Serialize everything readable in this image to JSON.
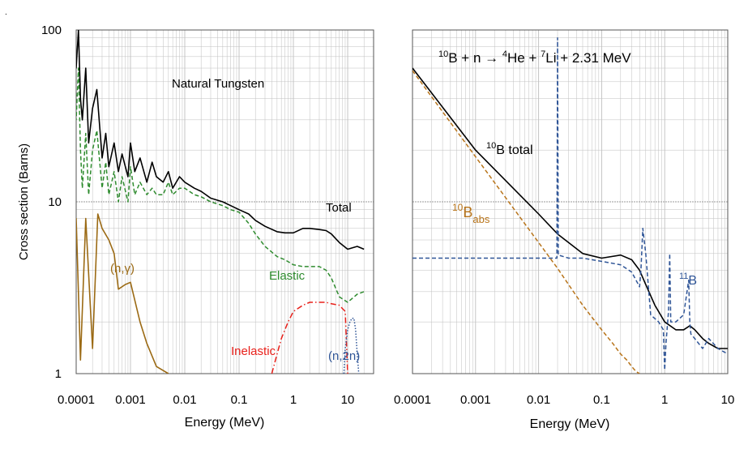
{
  "figure": {
    "ylabel": "Cross section (Barns)",
    "y_ticks": [
      "1",
      "10",
      "100"
    ],
    "x_ticks_left": [
      "0.0001",
      "0.001",
      "0.01",
      "0.1",
      "1",
      "10"
    ],
    "x_ticks_right": [
      "0.0001",
      "0.001",
      "0.01",
      "0.1",
      "1",
      "10"
    ],
    "xlabel_left": "Energy (MeV)",
    "xlabel_right": "Energy (MeV)",
    "left_title": "Natural Tungsten",
    "right_title": {
      "m1": "10",
      "t1": "B + n → ",
      "m2": "4",
      "t2": "He + ",
      "m3": "7",
      "t3": "Li + 2.31 MeV"
    },
    "labels_left": {
      "total": "Total",
      "elastic": "Elastic",
      "ngamma": "(n,γ)",
      "inelastic": "Inelastic",
      "n2n": "(n,2n)"
    },
    "labels_right": {
      "b10total_sup": "10",
      "b10total_text": "B total",
      "b10abs_sup": "10",
      "b10abs_base": "B",
      "b10abs_sub": "abs",
      "b11_sup": "11",
      "b11_base": "B"
    }
  },
  "colors": {
    "total": "#000000",
    "elastic": "#2e8b2e",
    "ngamma": "#9b6a14",
    "inelastic": "#e8201a",
    "n2n": "#2f5597",
    "b10abs": "#b8741a",
    "b11": "#2f5597",
    "grid": "#bfbfbf"
  },
  "chart_data": [
    {
      "type": "line",
      "title": "Natural Tungsten",
      "xlabel": "Energy (MeV)",
      "ylabel": "Cross section (Barns)",
      "xscale": "log",
      "yscale": "log",
      "xlim": [
        0.0001,
        30
      ],
      "ylim": [
        1,
        100
      ],
      "grid": true,
      "series": [
        {
          "name": "Total",
          "style": "solid",
          "x": [
            8e-05,
            0.0001,
            0.00011,
            0.00012,
            0.00013,
            0.00015,
            0.00017,
            0.0002,
            0.00024,
            0.0003,
            0.00035,
            0.0004,
            0.0005,
            0.0006,
            0.0007,
            0.0009,
            0.001,
            0.0012,
            0.0015,
            0.002,
            0.0025,
            0.003,
            0.004,
            0.005,
            0.006,
            0.008,
            0.01,
            0.015,
            0.02,
            0.03,
            0.05,
            0.07,
            0.1,
            0.15,
            0.2,
            0.3,
            0.5,
            0.7,
            1,
            1.5,
            2,
            3,
            4,
            5,
            7,
            10,
            15,
            20
          ],
          "y": [
            90,
            60,
            100,
            40,
            30,
            60,
            22,
            35,
            45,
            18,
            25,
            16,
            22,
            15,
            19,
            14,
            22,
            15,
            18,
            13,
            17,
            14,
            13,
            15,
            12,
            14,
            13,
            12,
            11.5,
            10.5,
            10,
            9.5,
            9,
            8.5,
            7.8,
            7.2,
            6.7,
            6.6,
            6.6,
            7,
            7,
            6.9,
            6.8,
            6.5,
            5.8,
            5.3,
            5.5,
            5.3
          ]
        },
        {
          "name": "Elastic",
          "style": "dash",
          "x": [
            8e-05,
            0.0001,
            0.00011,
            0.00012,
            0.00013,
            0.00015,
            0.00017,
            0.0002,
            0.00024,
            0.0003,
            0.00035,
            0.0004,
            0.0005,
            0.0006,
            0.0007,
            0.0009,
            0.001,
            0.0012,
            0.0015,
            0.002,
            0.0025,
            0.003,
            0.004,
            0.005,
            0.006,
            0.008,
            0.01,
            0.015,
            0.02,
            0.03,
            0.05,
            0.07,
            0.1,
            0.15,
            0.2,
            0.3,
            0.5,
            0.7,
            1,
            1.5,
            2,
            3,
            4,
            5,
            7,
            10,
            15,
            20
          ],
          "y": [
            40,
            30,
            60,
            20,
            12,
            25,
            11,
            20,
            26,
            12,
            17,
            11,
            15,
            10,
            14,
            10,
            16,
            11,
            13,
            11,
            12,
            11,
            11,
            13,
            11,
            12,
            12,
            11,
            10.7,
            10,
            9.5,
            9,
            8.7,
            7.5,
            6.5,
            5.5,
            4.8,
            4.6,
            4.3,
            4.2,
            4.2,
            4.2,
            4,
            3.6,
            2.8,
            2.6,
            2.9,
            3
          ]
        },
        {
          "name": "(n,γ)",
          "style": "solid",
          "x": [
            6e-05,
            8e-05,
            0.0001,
            0.00012,
            0.00015,
            0.0002,
            0.00025,
            0.0003,
            0.0004,
            0.0005,
            0.0006,
            0.0008,
            0.001,
            0.0015,
            0.002,
            0.003,
            0.005
          ],
          "y": [
            8.3,
            1.2,
            8,
            1.2,
            8,
            1.4,
            8.5,
            7,
            6,
            5,
            3.1,
            3.3,
            3.4,
            2,
            1.5,
            1.1,
            1
          ]
        },
        {
          "name": "Inelastic",
          "style": "dashdot",
          "x": [
            0.4,
            0.5,
            0.6,
            0.8,
            1,
            1.5,
            2,
            3,
            4,
            5,
            7,
            9,
            10
          ],
          "y": [
            1,
            1.3,
            1.6,
            2,
            2.3,
            2.5,
            2.6,
            2.6,
            2.6,
            2.55,
            2.5,
            2.3,
            1
          ]
        },
        {
          "name": "(n,2n)",
          "style": "dot",
          "x": [
            8.5,
            9,
            10,
            11,
            12,
            13,
            14,
            15,
            16
          ],
          "y": [
            1,
            1.4,
            1.8,
            2,
            2.1,
            2.1,
            1.8,
            1.3,
            1
          ]
        }
      ]
    },
    {
      "type": "line",
      "title": "10B + n → 4He + 7Li + 2.31 MeV",
      "xlabel": "Energy (MeV)",
      "ylabel": "Cross section (Barns)",
      "xscale": "log",
      "yscale": "log",
      "xlim": [
        0.0001,
        10
      ],
      "ylim": [
        1,
        100
      ],
      "grid": true,
      "series": [
        {
          "name": "10B total",
          "style": "solid",
          "x": [
            0.0001,
            0.001,
            0.01,
            0.02,
            0.05,
            0.1,
            0.2,
            0.3,
            0.4,
            0.5,
            0.7,
            1,
            1.5,
            2,
            2.5,
            3,
            4,
            5,
            7,
            10
          ],
          "y": [
            60,
            20,
            8.5,
            6.5,
            5,
            4.7,
            4.9,
            4.6,
            4,
            3.3,
            2.5,
            2,
            1.8,
            1.8,
            1.9,
            1.8,
            1.6,
            1.5,
            1.4,
            1.4
          ]
        },
        {
          "name": "10Babs",
          "style": "dash",
          "x": [
            0.0001,
            0.001,
            0.01,
            0.02,
            0.05,
            0.1,
            0.15,
            0.2,
            0.25,
            0.3,
            0.35,
            0.4
          ],
          "y": [
            58,
            18.3,
            5.8,
            4.1,
            2.5,
            1.8,
            1.5,
            1.3,
            1.2,
            1.1,
            1.03,
            1
          ]
        },
        {
          "name": "11B",
          "style": "dash",
          "x": [
            0.0001,
            0.01,
            0.0195,
            0.02,
            0.0205,
            0.03,
            0.05,
            0.1,
            0.2,
            0.3,
            0.4,
            0.42,
            0.45,
            0.5,
            0.6,
            0.8,
            0.95,
            1,
            1.05,
            1.15,
            1.2,
            1.25,
            1.5,
            2,
            2.4,
            2.5,
            2.6,
            3,
            4,
            5,
            7,
            10
          ],
          "y": [
            4.7,
            4.7,
            4.7,
            90,
            4.9,
            4.7,
            4.7,
            4.5,
            4.3,
            3.9,
            3.2,
            4,
            7,
            5,
            2.2,
            2,
            1.8,
            1.05,
            1.5,
            2.3,
            5,
            2,
            2,
            2.2,
            3.5,
            2,
            1.7,
            1.6,
            1.4,
            1.6,
            1.4,
            1.3
          ]
        }
      ]
    }
  ]
}
